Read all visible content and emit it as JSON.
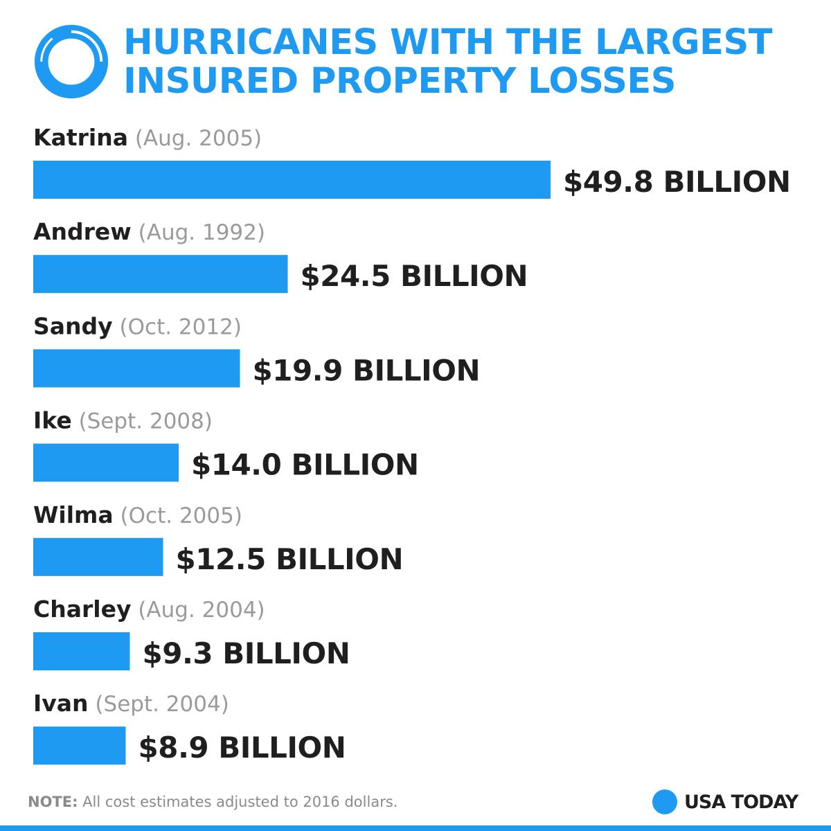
{
  "header": {
    "title": "HURRICANES WITH THE LARGEST\nINSURED PROPERTY LOSSES",
    "icon": "hurricane-ring-icon"
  },
  "colors": {
    "accent": "#1e9af2",
    "text": "#1f1f1f",
    "muted": "#9a9a9a"
  },
  "chart_data": {
    "type": "bar",
    "orientation": "horizontal",
    "title": "HURRICANES WITH THE LARGEST INSURED PROPERTY LOSSES",
    "categories": [
      "Katrina",
      "Andrew",
      "Sandy",
      "Ike",
      "Wilma",
      "Charley",
      "Ivan"
    ],
    "dates": [
      "(Aug. 2005)",
      "(Aug. 1992)",
      "(Oct. 2012)",
      "(Sept. 2008)",
      "(Oct. 2005)",
      "(Aug. 2004)",
      "(Sept. 2004)"
    ],
    "values": [
      49.8,
      24.5,
      19.9,
      14.0,
      12.5,
      9.3,
      8.9
    ],
    "value_labels": [
      "$49.8 BILLION",
      "$24.5 BILLION",
      "$19.9 BILLION",
      "$14.0 BILLION",
      "$12.5 BILLION",
      "$9.3 BILLION",
      "$8.9 BILLION"
    ],
    "grid": false,
    "legend": "none"
  },
  "footer": {
    "note_label": "NOTE:",
    "note_text": " All cost estimates adjusted to 2016 dollars.",
    "brand": "USA TODAY"
  }
}
